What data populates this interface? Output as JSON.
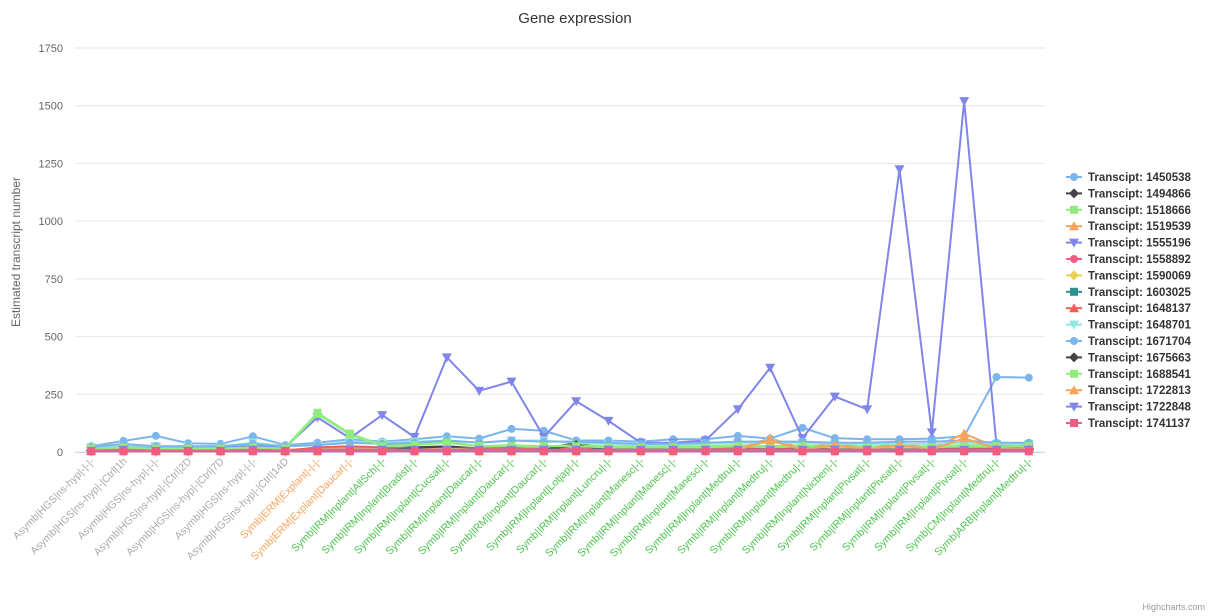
{
  "chart_data": {
    "type": "line",
    "title": "Gene expression",
    "ylabel": "Estimated transcript number",
    "xlabel": "",
    "ylim": [
      0,
      1750
    ],
    "yticks": [
      0,
      250,
      500,
      750,
      1000,
      1250,
      1500,
      1750
    ],
    "ytick_labels": [
      "0",
      "250",
      "500",
      "750",
      "1000",
      "1250",
      "1500",
      "1750"
    ],
    "grid": true,
    "legend": "right",
    "credits": "Highcharts.com",
    "categories": [
      "Asymb|HGS|ns-hyp|-|-|-",
      "Asymb|HGS|ns-hyp|-|Ctrl|1h",
      "Asymb|HGS|ns-hyp|-|-|-",
      "Asymb|HGS|ns-hyp|-|Ctrl|2D",
      "Asymb|HGS|ns-hyp|-|Ctrl|7D",
      "Asymb|HGS|ns-hyp|-|-|-",
      "Asymb|HGS|ns-hyp|-|Ctrl|14D",
      "Symb|ERM|Explant|-|-|-",
      "Symb|ERM|Explant|Daucar|-|-",
      "Symb|IRM|Inplant|AllSch|-|-",
      "Symb|IRM|Inplant|Bradist|-|-",
      "Symb|IRM|Inplant|Cucsat|-|-",
      "Symb|IRM|Inplant|Daucar|-|-",
      "Symb|IRM|Inplant|Daucar|-|-",
      "Symb|IRM|Inplant|Daucar|-|-",
      "Symb|IRM|Inplant|Lotjap|-|-",
      "Symb|IRM|Inplant|Luncru|-|-",
      "Symb|IRM|Inplant|Manesc|-|-",
      "Symb|IRM|Inplant|Manesc|-|-",
      "Symb|IRM|Inplant|Manesc|-|-",
      "Symb|IRM|Inplant|Medtru|-|-",
      "Symb|IRM|Inplant|Medtru|-|-",
      "Symb|IRM|Inplant|Medtru|-|-",
      "Symb|IRM|Inplant|Nicben|-|-",
      "Symb|IRM|Inplant|Pivsat|-|-",
      "Symb|IRM|Inplant|Pivsat|-|-",
      "Symb|IRM|Inplant|Pivsat|-|-",
      "Symb|IRM|Inplant|Pivsat|-|-",
      "Symb|CM|Inplant|Medtru|-|-",
      "Symb|ARB|Inplant|Medtru|-|-"
    ],
    "category_colors": [
      "#aaaaaa",
      "#aaaaaa",
      "#aaaaaa",
      "#aaaaaa",
      "#aaaaaa",
      "#aaaaaa",
      "#aaaaaa",
      "#f7a35c",
      "#f7a35c",
      "#4cc44c",
      "#4cc44c",
      "#4cc44c",
      "#4cc44c",
      "#4cc44c",
      "#4cc44c",
      "#4cc44c",
      "#4cc44c",
      "#4cc44c",
      "#4cc44c",
      "#4cc44c",
      "#4cc44c",
      "#4cc44c",
      "#4cc44c",
      "#4cc44c",
      "#4cc44c",
      "#4cc44c",
      "#4cc44c",
      "#4cc44c",
      "#4cc44c",
      "#4cc44c"
    ],
    "series": [
      {
        "name": "Transcipt: 1450538",
        "color": "#7cb5ec",
        "marker": "circle",
        "values": [
          25,
          48,
          70,
          38,
          35,
          68,
          30,
          40,
          55,
          45,
          55,
          68,
          58,
          100,
          92,
          50,
          50,
          45,
          55,
          55,
          70,
          58,
          105,
          60,
          55,
          55,
          58,
          68,
          325,
          322
        ]
      },
      {
        "name": "Transcipt: 1494866",
        "color": "#434348",
        "marker": "diamond",
        "values": [
          8,
          10,
          8,
          8,
          10,
          12,
          10,
          12,
          15,
          15,
          20,
          25,
          15,
          18,
          12,
          40,
          12,
          10,
          10,
          10,
          12,
          12,
          12,
          10,
          10,
          12,
          10,
          12,
          15,
          15
        ]
      },
      {
        "name": "Transcipt: 1518666",
        "color": "#90ed7d",
        "marker": "square",
        "values": [
          15,
          25,
          15,
          15,
          15,
          20,
          20,
          170,
          80,
          30,
          35,
          45,
          25,
          30,
          25,
          30,
          25,
          25,
          25,
          25,
          30,
          25,
          30,
          25,
          25,
          25,
          25,
          30,
          30,
          30
        ]
      },
      {
        "name": "Transcipt: 1519539",
        "color": "#f7a35c",
        "marker": "triangle",
        "values": [
          10,
          12,
          10,
          10,
          10,
          12,
          10,
          15,
          20,
          15,
          15,
          18,
          15,
          15,
          15,
          15,
          15,
          15,
          15,
          15,
          15,
          60,
          15,
          40,
          15,
          40,
          15,
          80,
          20,
          20
        ]
      },
      {
        "name": "Transcipt: 1555196",
        "color": "#8085e9",
        "marker": "triangle-down",
        "values": [
          15,
          30,
          20,
          20,
          20,
          25,
          20,
          150,
          60,
          160,
          65,
          410,
          265,
          305,
          65,
          220,
          135,
          40,
          40,
          50,
          185,
          365,
          60,
          240,
          185,
          1225,
          85,
          1520,
          30,
          20
        ]
      },
      {
        "name": "Transcipt: 1558892",
        "color": "#f15c80",
        "marker": "circle",
        "values": [
          5,
          5,
          5,
          5,
          5,
          5,
          5,
          5,
          5,
          5,
          5,
          5,
          5,
          5,
          5,
          5,
          5,
          5,
          5,
          5,
          5,
          5,
          5,
          5,
          5,
          5,
          5,
          5,
          5,
          5
        ]
      },
      {
        "name": "Transcipt: 1590069",
        "color": "#e4d354",
        "marker": "diamond",
        "values": [
          5,
          8,
          5,
          5,
          5,
          8,
          5,
          10,
          10,
          10,
          10,
          10,
          10,
          10,
          10,
          10,
          10,
          10,
          10,
          10,
          10,
          10,
          10,
          10,
          10,
          10,
          10,
          10,
          10,
          10
        ]
      },
      {
        "name": "Transcipt: 1603025",
        "color": "#2b908f",
        "marker": "square",
        "values": [
          5,
          5,
          5,
          5,
          5,
          5,
          5,
          8,
          8,
          8,
          8,
          8,
          8,
          8,
          8,
          8,
          8,
          8,
          8,
          8,
          8,
          8,
          8,
          8,
          8,
          8,
          8,
          8,
          8,
          30
        ]
      },
      {
        "name": "Transcipt: 1648137",
        "color": "#f45b5b",
        "marker": "triangle",
        "values": [
          5,
          10,
          5,
          5,
          5,
          10,
          5,
          20,
          25,
          20,
          15,
          15,
          15,
          15,
          15,
          15,
          15,
          15,
          15,
          15,
          15,
          15,
          15,
          15,
          15,
          15,
          15,
          15,
          15,
          15
        ]
      },
      {
        "name": "Transcipt: 1648701",
        "color": "#91e8e1",
        "marker": "triangle-down",
        "values": [
          20,
          30,
          25,
          25,
          25,
          40,
          25,
          30,
          45,
          40,
          45,
          50,
          40,
          50,
          50,
          40,
          35,
          30,
          30,
          35,
          40,
          40,
          40,
          35,
          35,
          35,
          35,
          40,
          35,
          35
        ]
      },
      {
        "name": "Transcipt: 1671704",
        "color": "#7cb5ec",
        "marker": "circle",
        "values": [
          20,
          35,
          25,
          25,
          25,
          35,
          25,
          30,
          40,
          35,
          40,
          50,
          40,
          50,
          45,
          45,
          40,
          35,
          35,
          40,
          45,
          45,
          45,
          40,
          40,
          45,
          45,
          50,
          40,
          40
        ]
      },
      {
        "name": "Transcipt: 1675663",
        "color": "#434348",
        "marker": "diamond",
        "values": [
          5,
          8,
          5,
          5,
          5,
          8,
          5,
          8,
          10,
          10,
          15,
          20,
          10,
          10,
          10,
          30,
          10,
          10,
          10,
          10,
          10,
          10,
          10,
          10,
          10,
          10,
          10,
          10,
          10,
          10
        ]
      },
      {
        "name": "Transcipt: 1688541",
        "color": "#90ed7d",
        "marker": "square",
        "values": [
          15,
          20,
          15,
          15,
          15,
          20,
          15,
          165,
          75,
          25,
          30,
          40,
          25,
          25,
          25,
          25,
          20,
          20,
          20,
          20,
          25,
          20,
          25,
          20,
          20,
          20,
          20,
          25,
          25,
          25
        ]
      },
      {
        "name": "Transcipt: 1722813",
        "color": "#f7a35c",
        "marker": "triangle",
        "values": [
          5,
          10,
          5,
          5,
          5,
          10,
          5,
          10,
          15,
          10,
          10,
          15,
          10,
          10,
          10,
          10,
          10,
          10,
          10,
          10,
          10,
          50,
          10,
          30,
          10,
          30,
          10,
          60,
          15,
          15
        ]
      },
      {
        "name": "Transcipt: 1722848",
        "color": "#8085e9",
        "marker": "triangle-down",
        "values": [
          5,
          10,
          5,
          5,
          5,
          10,
          5,
          10,
          10,
          10,
          10,
          10,
          10,
          10,
          10,
          10,
          10,
          10,
          10,
          10,
          10,
          10,
          10,
          10,
          10,
          10,
          10,
          10,
          10,
          10
        ]
      },
      {
        "name": "Transcipt: 1741137",
        "color": "#f15c80",
        "marker": "square",
        "values": [
          3,
          3,
          3,
          3,
          3,
          3,
          3,
          3,
          3,
          3,
          3,
          3,
          3,
          3,
          3,
          3,
          3,
          3,
          3,
          3,
          3,
          3,
          3,
          3,
          3,
          3,
          3,
          3,
          3,
          3
        ]
      }
    ]
  }
}
